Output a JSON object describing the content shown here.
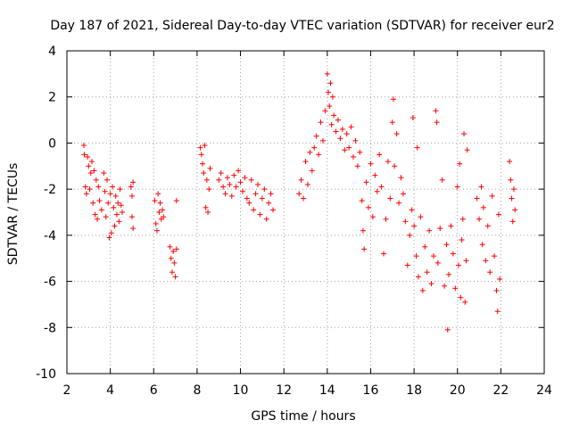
{
  "chart_data": {
    "type": "scatter",
    "title": "Day 187 of 2021, Sidereal Day-to-day VTEC variation (SDTVAR) for receiver eur2",
    "xlabel": "GPS time / hours",
    "ylabel": "SDTVAR / TECUs",
    "xlim": [
      2,
      24
    ],
    "ylim": [
      -10,
      4
    ],
    "xticks": [
      "2",
      "4",
      "6",
      "8",
      "10",
      "12",
      "14",
      "16",
      "18",
      "20",
      "22",
      "24"
    ],
    "yticks": [
      "4",
      "2",
      "0",
      "-2",
      "-4",
      "-6",
      "-8",
      "-10"
    ],
    "marker": "+",
    "marker_color": "#ff0000",
    "grid": true,
    "series": [
      {
        "name": "SDTVAR",
        "points": [
          [
            2.78,
            -0.1
          ],
          [
            2.8,
            -0.5
          ],
          [
            2.85,
            -1.9
          ],
          [
            2.9,
            -2.2
          ],
          [
            2.95,
            -0.6
          ],
          [
            3.0,
            -1.0
          ],
          [
            3.05,
            -2.0
          ],
          [
            3.1,
            -1.3
          ],
          [
            3.15,
            -0.8
          ],
          [
            3.2,
            -2.6
          ],
          [
            3.25,
            -1.2
          ],
          [
            3.3,
            -3.1
          ],
          [
            3.35,
            -1.6
          ],
          [
            3.4,
            -3.3
          ],
          [
            3.45,
            -1.9
          ],
          [
            3.5,
            -2.5
          ],
          [
            3.6,
            -2.9
          ],
          [
            3.7,
            -1.3
          ],
          [
            3.75,
            -2.1
          ],
          [
            3.8,
            -3.2
          ],
          [
            3.85,
            -1.6
          ],
          [
            3.9,
            -2.6
          ],
          [
            3.95,
            -4.1
          ],
          [
            4.0,
            -2.2
          ],
          [
            4.05,
            -3.9
          ],
          [
            4.1,
            -1.9
          ],
          [
            4.15,
            -2.8
          ],
          [
            4.2,
            -3.6
          ],
          [
            4.25,
            -2.3
          ],
          [
            4.3,
            -3.1
          ],
          [
            4.35,
            -2.6
          ],
          [
            4.4,
            -3.4
          ],
          [
            4.45,
            -2.0
          ],
          [
            4.5,
            -2.7
          ],
          [
            4.55,
            -3.0
          ],
          [
            4.95,
            -1.9
          ],
          [
            5.0,
            -2.3
          ],
          [
            5.0,
            -3.2
          ],
          [
            5.05,
            -1.7
          ],
          [
            5.05,
            -3.7
          ],
          [
            6.05,
            -2.5
          ],
          [
            6.1,
            -3.5
          ],
          [
            6.15,
            -3.8
          ],
          [
            6.2,
            -2.2
          ],
          [
            6.25,
            -3.0
          ],
          [
            6.3,
            -2.6
          ],
          [
            6.35,
            -3.3
          ],
          [
            6.4,
            -2.9
          ],
          [
            6.45,
            -3.2
          ],
          [
            6.75,
            -4.5
          ],
          [
            6.8,
            -5.0
          ],
          [
            6.85,
            -5.6
          ],
          [
            6.9,
            -4.7
          ],
          [
            6.95,
            -5.2
          ],
          [
            7.0,
            -5.8
          ],
          [
            7.05,
            -4.6
          ],
          [
            7.05,
            -2.5
          ],
          [
            8.15,
            -0.2
          ],
          [
            8.2,
            -0.5
          ],
          [
            8.25,
            -0.9
          ],
          [
            8.3,
            -1.3
          ],
          [
            8.35,
            -0.1
          ],
          [
            8.4,
            -2.8
          ],
          [
            8.45,
            -1.6
          ],
          [
            8.5,
            -3.0
          ],
          [
            8.55,
            -2.0
          ],
          [
            8.6,
            -1.1
          ],
          [
            9.0,
            -1.6
          ],
          [
            9.1,
            -1.3
          ],
          [
            9.2,
            -1.9
          ],
          [
            9.3,
            -2.2
          ],
          [
            9.4,
            -1.5
          ],
          [
            9.5,
            -1.8
          ],
          [
            9.6,
            -2.3
          ],
          [
            9.7,
            -1.4
          ],
          [
            9.8,
            -1.9
          ],
          [
            9.9,
            -1.2
          ],
          [
            10.0,
            -1.7
          ],
          [
            10.1,
            -2.1
          ],
          [
            10.2,
            -1.5
          ],
          [
            10.3,
            -2.4
          ],
          [
            10.4,
            -2.6
          ],
          [
            10.5,
            -1.6
          ],
          [
            10.6,
            -2.9
          ],
          [
            10.7,
            -2.2
          ],
          [
            10.8,
            -1.8
          ],
          [
            10.9,
            -3.1
          ],
          [
            11.0,
            -2.4
          ],
          [
            11.1,
            -2.0
          ],
          [
            11.2,
            -3.3
          ],
          [
            11.3,
            -2.6
          ],
          [
            11.4,
            -2.2
          ],
          [
            11.5,
            -2.9
          ],
          [
            12.7,
            -2.2
          ],
          [
            12.8,
            -1.6
          ],
          [
            12.9,
            -2.4
          ],
          [
            13.0,
            -0.8
          ],
          [
            13.1,
            -1.8
          ],
          [
            13.2,
            -0.4
          ],
          [
            13.3,
            -1.2
          ],
          [
            13.4,
            -0.2
          ],
          [
            13.5,
            0.3
          ],
          [
            13.6,
            -0.5
          ],
          [
            13.7,
            0.9
          ],
          [
            13.8,
            0.1
          ],
          [
            13.9,
            1.4
          ],
          [
            14.0,
            3.0
          ],
          [
            14.05,
            2.2
          ],
          [
            14.1,
            1.6
          ],
          [
            14.15,
            2.6
          ],
          [
            14.2,
            0.8
          ],
          [
            14.25,
            2.0
          ],
          [
            14.3,
            1.2
          ],
          [
            14.4,
            0.5
          ],
          [
            14.5,
            1.0
          ],
          [
            14.6,
            0.2
          ],
          [
            14.7,
            0.6
          ],
          [
            14.8,
            -0.3
          ],
          [
            14.9,
            0.4
          ],
          [
            15.0,
            -0.2
          ],
          [
            15.1,
            0.7
          ],
          [
            15.2,
            -0.6
          ],
          [
            15.3,
            0.1
          ],
          [
            15.4,
            -1.0
          ],
          [
            15.5,
            -0.4
          ],
          [
            15.6,
            -2.5
          ],
          [
            15.65,
            -3.8
          ],
          [
            15.7,
            -4.6
          ],
          [
            15.8,
            -1.7
          ],
          [
            15.9,
            -2.8
          ],
          [
            16.0,
            -0.9
          ],
          [
            16.1,
            -3.2
          ],
          [
            16.2,
            -1.4
          ],
          [
            16.3,
            -2.1
          ],
          [
            16.4,
            -0.5
          ],
          [
            16.5,
            -1.9
          ],
          [
            16.6,
            -4.8
          ],
          [
            16.7,
            -3.3
          ],
          [
            16.8,
            -0.8
          ],
          [
            16.9,
            -2.4
          ],
          [
            17.0,
            0.9
          ],
          [
            17.05,
            1.9
          ],
          [
            17.1,
            -1.0
          ],
          [
            17.2,
            0.4
          ],
          [
            17.3,
            -2.6
          ],
          [
            17.4,
            -1.5
          ],
          [
            17.5,
            -2.2
          ],
          [
            17.6,
            -3.4
          ],
          [
            17.7,
            -5.3
          ],
          [
            17.8,
            -4.0
          ],
          [
            17.9,
            -2.9
          ],
          [
            17.95,
            1.1
          ],
          [
            18.0,
            -3.6
          ],
          [
            18.1,
            -4.9
          ],
          [
            18.15,
            -0.2
          ],
          [
            18.2,
            -5.8
          ],
          [
            18.3,
            -3.2
          ],
          [
            18.4,
            -6.4
          ],
          [
            18.5,
            -4.5
          ],
          [
            18.6,
            -5.6
          ],
          [
            18.7,
            -3.8
          ],
          [
            18.8,
            -6.1
          ],
          [
            18.9,
            -4.9
          ],
          [
            19.0,
            1.4
          ],
          [
            19.05,
            0.9
          ],
          [
            19.1,
            -5.2
          ],
          [
            19.2,
            -3.7
          ],
          [
            19.3,
            -1.6
          ],
          [
            19.4,
            -6.2
          ],
          [
            19.5,
            -4.4
          ],
          [
            19.55,
            -8.1
          ],
          [
            19.6,
            -5.7
          ],
          [
            19.7,
            -3.6
          ],
          [
            19.8,
            -4.8
          ],
          [
            19.9,
            -6.3
          ],
          [
            20.0,
            -1.9
          ],
          [
            20.05,
            -5.3
          ],
          [
            20.1,
            -0.9
          ],
          [
            20.15,
            -6.7
          ],
          [
            20.2,
            -4.2
          ],
          [
            20.25,
            -3.3
          ],
          [
            20.3,
            0.4
          ],
          [
            20.35,
            -6.9
          ],
          [
            20.4,
            -5.1
          ],
          [
            20.45,
            -0.3
          ],
          [
            20.9,
            -2.4
          ],
          [
            21.0,
            -3.3
          ],
          [
            21.1,
            -1.9
          ],
          [
            21.15,
            -4.4
          ],
          [
            21.2,
            -2.8
          ],
          [
            21.3,
            -5.1
          ],
          [
            21.4,
            -3.6
          ],
          [
            21.5,
            -5.6
          ],
          [
            21.6,
            -2.3
          ],
          [
            21.7,
            -4.9
          ],
          [
            21.8,
            -6.4
          ],
          [
            21.85,
            -7.3
          ],
          [
            21.9,
            -3.1
          ],
          [
            21.95,
            -5.9
          ],
          [
            22.4,
            -0.8
          ],
          [
            22.45,
            -1.6
          ],
          [
            22.5,
            -2.4
          ],
          [
            22.55,
            -3.4
          ],
          [
            22.6,
            -2.0
          ],
          [
            22.65,
            -2.9
          ]
        ]
      }
    ]
  }
}
